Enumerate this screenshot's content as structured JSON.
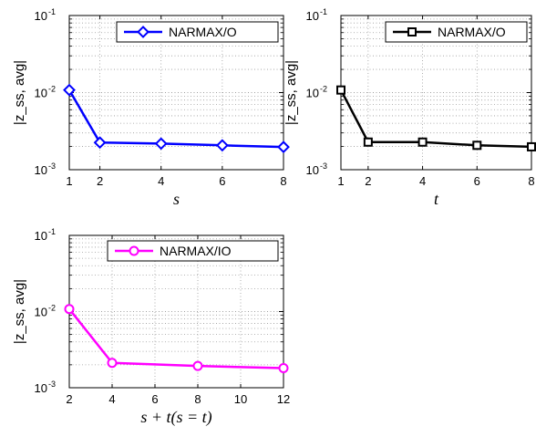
{
  "chart_data": [
    {
      "type": "line",
      "scale": "log",
      "grid": true,
      "legend_position": "top-right",
      "xlabel": "s",
      "ylabel": "|z_ss, avg|",
      "ylim": [
        0.001,
        0.1
      ],
      "xlim": [
        1,
        8
      ],
      "x_ticks": [
        "1",
        "2",
        "4",
        "6",
        "8"
      ],
      "y_ticks": [
        {
          "base": "10",
          "exp": "-1"
        },
        {
          "base": "10",
          "exp": "-2"
        },
        {
          "base": "10",
          "exp": "-3"
        }
      ],
      "series": [
        {
          "name": "NARMAX/O",
          "color": "#0000ff",
          "marker": "diamond",
          "x": [
            1,
            2,
            4,
            6,
            8
          ],
          "y": [
            0.0108,
            0.00225,
            0.00218,
            0.00207,
            0.00197
          ]
        }
      ]
    },
    {
      "type": "line",
      "scale": "log",
      "grid": true,
      "legend_position": "top-right",
      "xlabel": "t",
      "ylabel": "|z_ss, avg|",
      "ylim": [
        0.001,
        0.1
      ],
      "xlim": [
        1,
        8
      ],
      "x_ticks": [
        "1",
        "2",
        "4",
        "6",
        "8"
      ],
      "y_ticks": [
        {
          "base": "10",
          "exp": "-1"
        },
        {
          "base": "10",
          "exp": "-2"
        },
        {
          "base": "10",
          "exp": "-3"
        }
      ],
      "series": [
        {
          "name": "NARMAX/O",
          "color": "#000000",
          "marker": "square",
          "x": [
            1,
            2,
            4,
            6,
            8
          ],
          "y": [
            0.0108,
            0.00228,
            0.00228,
            0.00207,
            0.00198
          ]
        }
      ]
    },
    {
      "type": "line",
      "scale": "log",
      "grid": true,
      "legend_position": "top-right",
      "xlabel": "s + t(s = t)",
      "ylabel": "|z_ss, avg|",
      "ylim": [
        0.001,
        0.1
      ],
      "xlim": [
        2,
        12
      ],
      "x_ticks": [
        "2",
        "4",
        "6",
        "8",
        "10",
        "12"
      ],
      "y_ticks": [
        {
          "base": "10",
          "exp": "-1"
        },
        {
          "base": "10",
          "exp": "-2"
        },
        {
          "base": "10",
          "exp": "-3"
        }
      ],
      "series": [
        {
          "name": "NARMAX/IO",
          "color": "#ff00ff",
          "marker": "circle",
          "x": [
            2,
            4,
            8,
            12
          ],
          "y": [
            0.0108,
            0.00212,
            0.00193,
            0.00181
          ]
        }
      ]
    }
  ]
}
